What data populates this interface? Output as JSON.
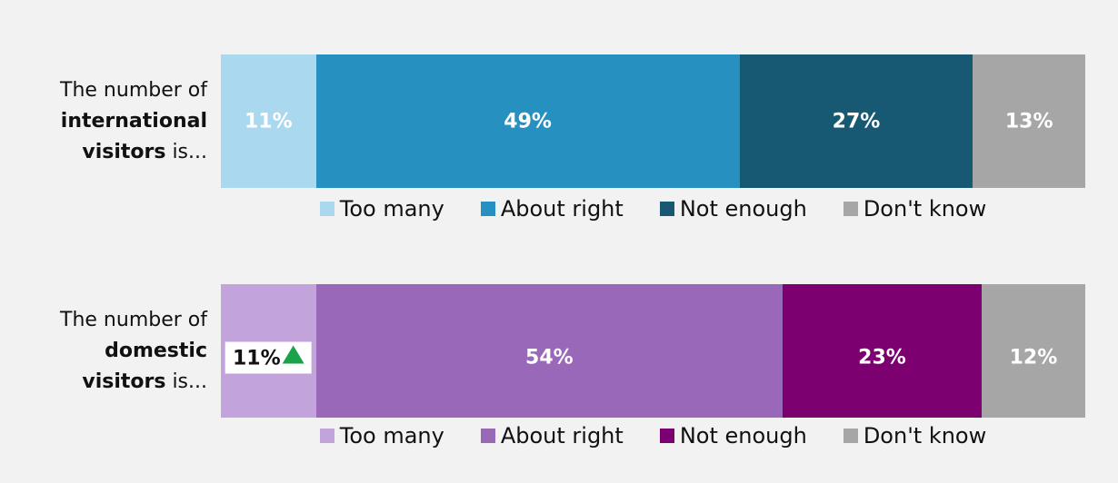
{
  "chart_data": [
    {
      "type": "stacked_bar",
      "label": [
        {
          "text": "The number of "
        },
        {
          "text": "international visitors",
          "bold": true
        },
        {
          "text": " is..."
        }
      ],
      "xlim": [
        0,
        100
      ],
      "series": [
        {
          "name": "Too many",
          "color": "#a9d8ef",
          "values": [
            11
          ],
          "value_labels": [
            "11%"
          ]
        },
        {
          "name": "About right",
          "color": "#2690c0",
          "values": [
            49
          ],
          "value_labels": [
            "49%"
          ]
        },
        {
          "name": "Not enough",
          "color": "#175873",
          "values": [
            27
          ],
          "value_labels": [
            "27%"
          ]
        },
        {
          "name": "Don't know",
          "color": "#a6a6a6",
          "values": [
            13
          ],
          "value_labels": [
            "13%"
          ]
        }
      ]
    },
    {
      "type": "stacked_bar",
      "label": [
        {
          "text": "The number of "
        },
        {
          "text": "domestic visitors",
          "bold": true
        },
        {
          "text": " is..."
        }
      ],
      "xlim": [
        0,
        100
      ],
      "highlight": {
        "series": 0,
        "marker": "triangle-up",
        "color": "#1aa34a"
      },
      "series": [
        {
          "name": "Too many",
          "color": "#c3a3dc",
          "values": [
            11
          ],
          "value_labels": [
            "11%"
          ]
        },
        {
          "name": "About right",
          "color": "#9a68b9",
          "values": [
            54
          ],
          "value_labels": [
            "54%"
          ]
        },
        {
          "name": "Not enough",
          "color": "#7d0070",
          "values": [
            23
          ],
          "value_labels": [
            "23%"
          ]
        },
        {
          "name": "Don't know",
          "color": "#a6a6a6",
          "values": [
            12
          ],
          "value_labels": [
            "12%"
          ]
        }
      ]
    }
  ]
}
